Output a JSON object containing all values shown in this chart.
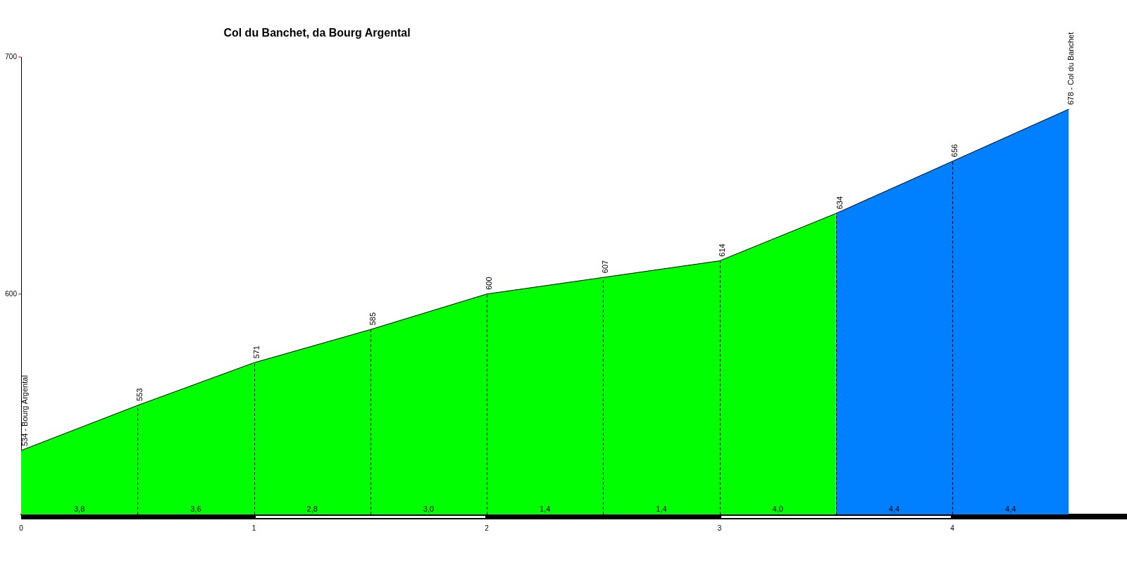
{
  "chart_data": {
    "type": "area",
    "title": "Col du Banchet, da Bourg Argental",
    "xlim": [
      0,
      4.75
    ],
    "xticks": [
      0,
      1,
      2,
      3,
      4
    ],
    "ylim": [
      507,
      700
    ],
    "yticks": [
      600,
      700
    ],
    "grid": false,
    "legend": false,
    "series": [
      {
        "color": "#00ff00",
        "x": [
          0,
          0.5,
          1,
          1.5,
          2,
          2.5,
          3,
          3.5
        ],
        "values": [
          534,
          553,
          571,
          585,
          600,
          607,
          614,
          634
        ],
        "value_labels": [
          "534 - Bourg Argental",
          "553",
          "571",
          "585",
          "600",
          "607",
          "614",
          null
        ]
      },
      {
        "color": "#0080ff",
        "x": [
          3.5,
          4,
          4.5
        ],
        "values": [
          634,
          656,
          678
        ],
        "value_labels": [
          "634",
          "656",
          "678 - Col du Banchet"
        ]
      }
    ],
    "ref_lines": [
      {
        "axis": "x",
        "value": 0.5,
        "line_style": "dashed",
        "color": "#000000"
      },
      {
        "axis": "x",
        "value": 1,
        "line_style": "dashed",
        "color": "#000000"
      },
      {
        "axis": "x",
        "value": 1.5,
        "line_style": "dashed",
        "color": "#000000"
      },
      {
        "axis": "x",
        "value": 2,
        "line_style": "dashed",
        "color": "#000000"
      },
      {
        "axis": "x",
        "value": 2.5,
        "line_style": "dashed",
        "color": "#000000"
      },
      {
        "axis": "x",
        "value": 3,
        "line_style": "dashed",
        "color": "#000000"
      },
      {
        "axis": "x",
        "value": 3.5,
        "line_style": "dashed",
        "color": "#000000"
      },
      {
        "axis": "x",
        "value": 4,
        "line_style": "dashed",
        "color": "#000000"
      }
    ],
    "annotations": [
      "3,8",
      "3,6",
      "2,8",
      "3,0",
      "1,4",
      "1,4",
      "4,0",
      "4,4",
      "4,4"
    ]
  }
}
